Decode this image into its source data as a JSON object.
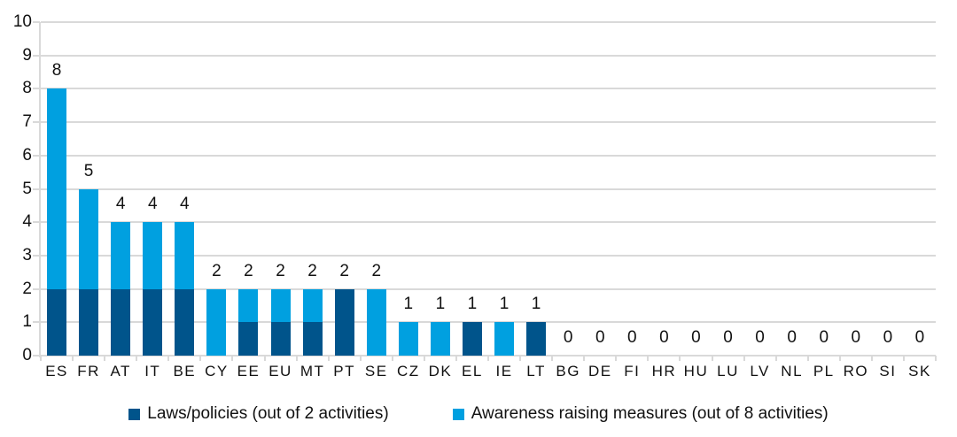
{
  "chart_data": {
    "type": "bar",
    "stacked": true,
    "title": "",
    "xlabel": "",
    "ylabel": "",
    "categories": [
      "ES",
      "FR",
      "AT",
      "IT",
      "BE",
      "CY",
      "EE",
      "EU",
      "MT",
      "PT",
      "SE",
      "CZ",
      "DK",
      "EL",
      "IE",
      "LT",
      "BG",
      "DE",
      "FI",
      "HR",
      "HU",
      "LU",
      "LV",
      "NL",
      "PL",
      "RO",
      "SI",
      "SK"
    ],
    "series": [
      {
        "name": "Laws/policies (out of 2 activities)",
        "color": "#00548b",
        "values": [
          2,
          2,
          2,
          2,
          2,
          0,
          1,
          1,
          1,
          2,
          0,
          0,
          0,
          1,
          0,
          1,
          0,
          0,
          0,
          0,
          0,
          0,
          0,
          0,
          0,
          0,
          0,
          0
        ]
      },
      {
        "name": "Awareness raising measures (out of 8 activities)",
        "color": "#00a0e0",
        "values": [
          6,
          3,
          2,
          2,
          2,
          2,
          1,
          1,
          1,
          0,
          2,
          1,
          1,
          0,
          1,
          0,
          0,
          0,
          0,
          0,
          0,
          0,
          0,
          0,
          0,
          0,
          0,
          0
        ]
      }
    ],
    "totals": [
      8,
      5,
      4,
      4,
      4,
      2,
      2,
      2,
      2,
      2,
      2,
      1,
      1,
      1,
      1,
      1,
      0,
      0,
      0,
      0,
      0,
      0,
      0,
      0,
      0,
      0,
      0,
      0
    ],
    "ylim": [
      0,
      10
    ],
    "yticks": [
      0,
      1,
      2,
      3,
      4,
      5,
      6,
      7,
      8,
      9,
      10
    ],
    "grid": true,
    "legend_position": "bottom",
    "show_total_labels": true,
    "colors": {
      "gridline": "#d9d9d9",
      "text": "#111111",
      "background": "#ffffff"
    }
  }
}
